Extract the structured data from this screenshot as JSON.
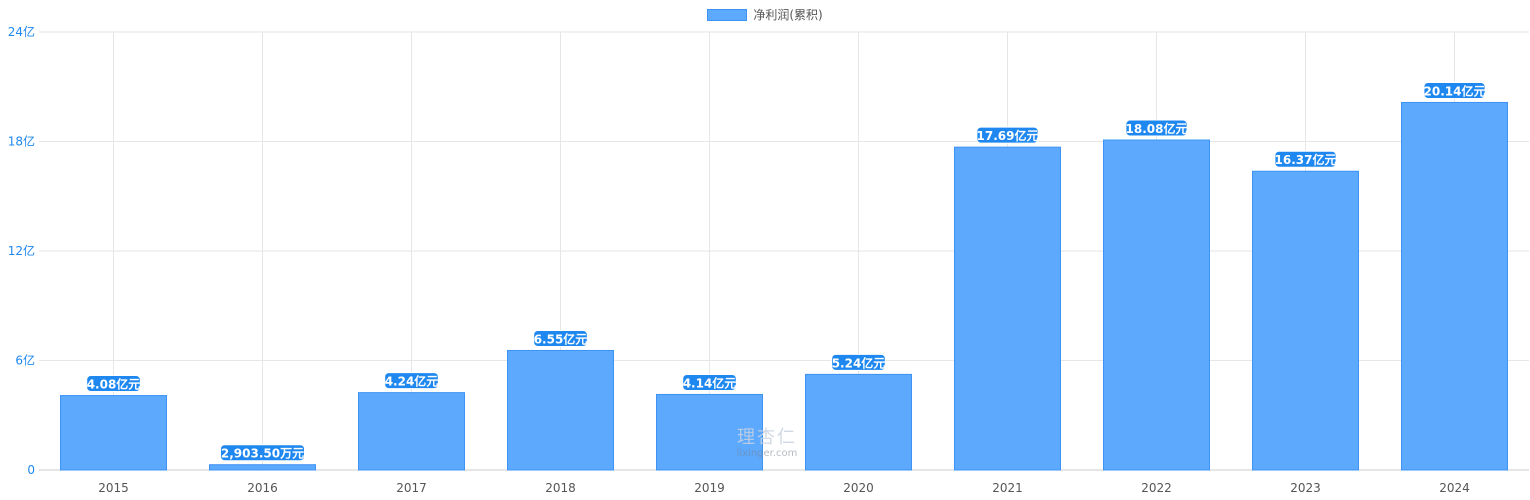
{
  "legend": {
    "label": "净利润(累积)",
    "color": "#5ca9fe"
  },
  "watermark": {
    "logo_text": "理杏仁",
    "site": "lixinger.com"
  },
  "colors": {
    "bar": "#5ca9fe",
    "bar_border": "#3d93f3",
    "label_bg": "#1e88f0",
    "grid": "#e6e6e6",
    "ytick": "#1e88f0",
    "xtick": "#555555"
  },
  "chart_data": {
    "type": "bar",
    "categories": [
      "2015",
      "2016",
      "2017",
      "2018",
      "2019",
      "2020",
      "2021",
      "2022",
      "2023",
      "2024"
    ],
    "series": [
      {
        "name": "净利润(累积)",
        "values": [
          4.08,
          0.29035,
          4.24,
          6.55,
          4.14,
          5.24,
          17.69,
          18.08,
          16.37,
          20.14
        ],
        "labels": [
          "4.08亿元",
          "2,903.50万元",
          "4.24亿元",
          "6.55亿元",
          "4.14亿元",
          "5.24亿元",
          "17.69亿元",
          "18.08亿元",
          "16.37亿元",
          "20.14亿元"
        ]
      }
    ],
    "yunit": "亿元",
    "ylim": [
      0,
      24
    ],
    "yticks": [
      0,
      6,
      12,
      18,
      24
    ],
    "ytick_labels": [
      "0",
      "6亿",
      "12亿",
      "18亿",
      "24亿"
    ],
    "grid": true,
    "legend_position": "top-center"
  }
}
